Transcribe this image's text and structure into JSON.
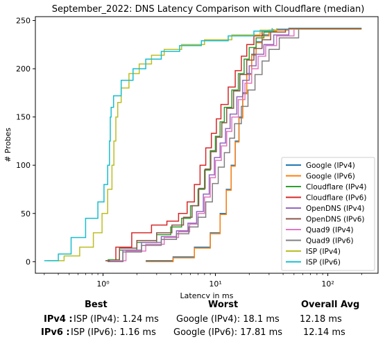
{
  "chart_data": {
    "type": "line",
    "title": "September_2022: DNS Latency Comparison with Cloudflare (median)",
    "xlabel": "Latency in ms",
    "ylabel": "# Probes",
    "xscale": "log",
    "xlim": [
      0.25,
      280
    ],
    "ylim": [
      -12,
      254
    ],
    "xticks": [
      1,
      10,
      100
    ],
    "xtick_labels": [
      "10⁰",
      "10¹",
      "10²"
    ],
    "yticks": [
      0,
      50,
      100,
      150,
      200,
      250
    ],
    "grid": false,
    "legend_position": "lower-right",
    "series": [
      {
        "name": "Google (IPv4)",
        "color": "#1f77b4",
        "x": [
          2.4,
          4.2,
          6.5,
          9,
          11,
          12.5,
          13.8,
          15,
          16.2,
          17.5,
          19,
          21,
          23,
          26,
          30,
          35,
          45,
          200
        ],
        "y": [
          1,
          5,
          15,
          30,
          50,
          75,
          100,
          125,
          150,
          175,
          195,
          215,
          228,
          235,
          240,
          241,
          242,
          242
        ]
      },
      {
        "name": "Google (IPv6)",
        "color": "#ff7f0e",
        "x": [
          2.4,
          4.2,
          6.5,
          9,
          11,
          12.5,
          13.8,
          15,
          16.2,
          17.5,
          19,
          21,
          23,
          26,
          30,
          35,
          45,
          200
        ],
        "y": [
          0,
          4,
          14,
          29,
          49,
          74,
          99,
          124,
          149,
          174,
          194,
          214,
          227,
          234,
          239,
          240,
          241,
          241
        ]
      },
      {
        "name": "Cloudflare (IPv4)",
        "color": "#2ca02c",
        "x": [
          1.1,
          1.4,
          2,
          3,
          4,
          5,
          6,
          7,
          8,
          9,
          10,
          11,
          12,
          14,
          16,
          18,
          20,
          23,
          27,
          33
        ],
        "y": [
          2,
          12,
          20,
          28,
          36,
          45,
          58,
          75,
          95,
          115,
          130,
          145,
          160,
          178,
          195,
          210,
          222,
          232,
          238,
          241
        ]
      },
      {
        "name": "Cloudflare (IPv6)",
        "color": "#d62728",
        "x": [
          1.05,
          1.3,
          1.8,
          2.7,
          3.7,
          4.7,
          5.6,
          6.5,
          7.3,
          8.2,
          9.2,
          10.2,
          11.2,
          13,
          15,
          17,
          19,
          22,
          26,
          32
        ],
        "y": [
          1,
          15,
          30,
          38,
          42,
          50,
          62,
          80,
          100,
          118,
          133,
          148,
          163,
          181,
          198,
          213,
          225,
          234,
          239,
          242
        ]
      },
      {
        "name": "OpenDNS (IPv4)",
        "color": "#9467bd",
        "x": [
          1.1,
          1.5,
          2.2,
          3.3,
          4.5,
          5.7,
          6.8,
          7.8,
          8.8,
          9.8,
          11,
          12.3,
          13.5,
          15.5,
          17.5,
          20,
          23,
          27,
          33,
          45
        ],
        "y": [
          0,
          12,
          20,
          26,
          32,
          40,
          52,
          70,
          90,
          108,
          123,
          138,
          153,
          171,
          188,
          203,
          215,
          225,
          235,
          241
        ]
      },
      {
        "name": "OpenDNS (IPv6)",
        "color": "#8c564b",
        "x": [
          1.05,
          1.4,
          2,
          3,
          4.1,
          5.2,
          6.2,
          7.1,
          8.1,
          9.1,
          10.2,
          11.4,
          12.6,
          14.5,
          16.5,
          19,
          22,
          26,
          31,
          42
        ],
        "y": [
          1,
          14,
          22,
          30,
          38,
          46,
          58,
          76,
          96,
          114,
          129,
          144,
          159,
          177,
          194,
          209,
          221,
          230,
          238,
          241
        ]
      },
      {
        "name": "Quad9 (IPv4)",
        "color": "#e377c2",
        "x": [
          1.15,
          1.6,
          2.4,
          3.5,
          4.7,
          5.9,
          7,
          8,
          9,
          10,
          11.3,
          12.6,
          14,
          16,
          18.3,
          21,
          24,
          28,
          35,
          50
        ],
        "y": [
          1,
          11,
          18,
          25,
          31,
          39,
          50,
          67,
          87,
          105,
          120,
          135,
          150,
          168,
          185,
          200,
          213,
          224,
          234,
          241
        ]
      },
      {
        "name": "Quad9 (IPv6)",
        "color": "#7f7f7f",
        "x": [
          1.1,
          1.5,
          2.2,
          3.3,
          4.5,
          5.8,
          7,
          8.2,
          9.4,
          10.6,
          12,
          13.4,
          14.8,
          17,
          19.5,
          22.5,
          26,
          30,
          37,
          55
        ],
        "y": [
          0,
          10,
          17,
          23,
          29,
          36,
          46,
          62,
          81,
          98,
          113,
          128,
          143,
          161,
          178,
          194,
          208,
          220,
          232,
          241
        ]
      },
      {
        "name": "ISP (IPv4)",
        "color": "#bcbd22",
        "x": [
          0.32,
          0.45,
          0.62,
          0.82,
          0.98,
          1.1,
          1.2,
          1.25,
          1.3,
          1.35,
          1.45,
          1.7,
          2.1,
          2.7,
          3.5,
          5,
          8,
          14,
          25,
          35
        ],
        "y": [
          1,
          6,
          15,
          30,
          50,
          75,
          100,
          125,
          150,
          165,
          180,
          195,
          205,
          214,
          220,
          225,
          230,
          235,
          240,
          242
        ]
      },
      {
        "name": "ISP (IPv6)",
        "color": "#17becf",
        "x": [
          0.3,
          0.4,
          0.52,
          0.7,
          0.9,
          1.02,
          1.1,
          1.14,
          1.16,
          1.18,
          1.24,
          1.45,
          1.85,
          2.4,
          3.3,
          4.8,
          7.5,
          13,
          22,
          32
        ],
        "y": [
          1,
          8,
          25,
          45,
          62,
          80,
          100,
          125,
          150,
          160,
          172,
          188,
          200,
          210,
          218,
          224,
          229,
          234,
          239,
          242
        ]
      }
    ]
  },
  "summary": {
    "headers": {
      "best": "Best",
      "worst": "Worst",
      "avg": "Overall Avg"
    },
    "rows": [
      {
        "label": "IPv4 :",
        "best": "ISP (IPv4): 1.24 ms",
        "worst": "Google (IPv4): 18.1 ms",
        "avg": "12.18 ms"
      },
      {
        "label": "IPv6 :",
        "best": "ISP (IPv6): 1.16 ms",
        "worst": "Google (IPv6): 17.81 ms",
        "avg": "12.14 ms"
      }
    ]
  }
}
